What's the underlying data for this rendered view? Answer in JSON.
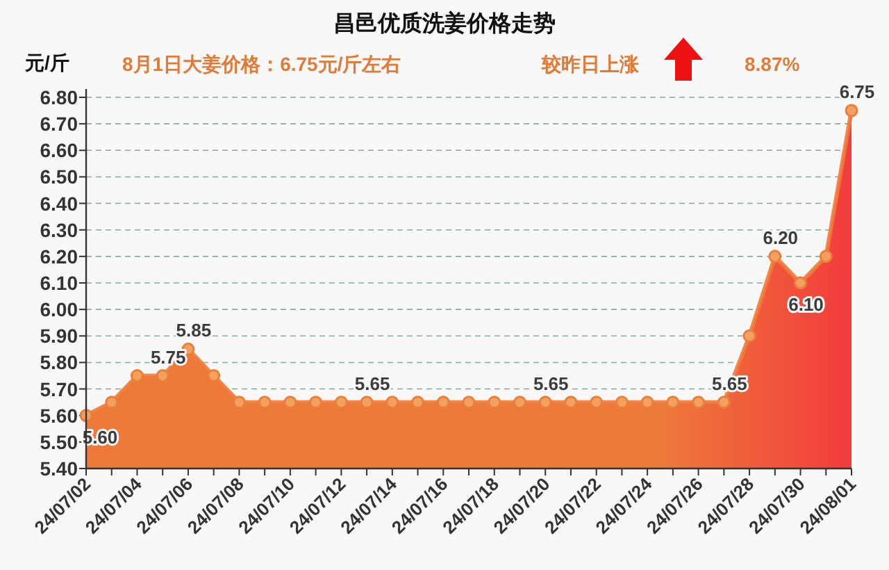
{
  "chart_data": {
    "type": "area",
    "title": "昌邑优质洗姜价格走势",
    "ylabel": "元/斤",
    "annotations": [
      "8月1日大姜价格：6.75元/斤左右",
      "较昨日上涨",
      "8.87%"
    ],
    "categories": [
      "24/07/02",
      null,
      "24/07/04",
      null,
      "24/07/06",
      null,
      "24/07/08",
      null,
      "24/07/10",
      null,
      "24/07/12",
      null,
      "24/07/14",
      null,
      "24/07/16",
      null,
      "24/07/18",
      null,
      "24/07/20",
      null,
      "24/07/22",
      null,
      "24/07/24",
      null,
      "24/07/26",
      null,
      "24/07/28",
      null,
      "24/07/30",
      null,
      "24/08/01"
    ],
    "series": [
      {
        "color": "#ee7a3a",
        "values": [
          5.6,
          5.65,
          5.75,
          5.75,
          5.85,
          5.75,
          5.65,
          5.65,
          5.65,
          5.65,
          5.65,
          5.65,
          5.65,
          5.65,
          5.65,
          5.65,
          5.65,
          5.65,
          5.65,
          5.65,
          5.65,
          5.65,
          5.65,
          5.65,
          5.65,
          5.65,
          5.9,
          6.2,
          6.1,
          6.2,
          6.75
        ],
        "value_labels": [
          "5.60",
          null,
          null,
          "5.75",
          "5.85",
          null,
          null,
          null,
          null,
          null,
          null,
          "5.65",
          null,
          null,
          null,
          null,
          null,
          null,
          "5.65",
          null,
          null,
          null,
          null,
          null,
          null,
          "5.65",
          null,
          "6.20",
          "6.10",
          null,
          "6.75"
        ]
      }
    ],
    "ylim": [
      5.4,
      6.8
    ],
    "yticks": [
      {
        "value": 5.4,
        "label": "5.40"
      },
      {
        "value": 5.5,
        "label": "5.50"
      },
      {
        "value": 5.6,
        "label": "5.60"
      },
      {
        "value": 5.7,
        "label": "5.70"
      },
      {
        "value": 5.8,
        "label": "5.80"
      },
      {
        "value": 5.9,
        "label": "5.90"
      },
      {
        "value": 6.0,
        "label": "6.00"
      },
      {
        "value": 6.1,
        "label": "6.10"
      },
      {
        "value": 6.2,
        "label": "6.20"
      },
      {
        "value": 6.3,
        "label": "6.30"
      },
      {
        "value": 6.4,
        "label": "6.40"
      },
      {
        "value": 6.5,
        "label": "6.50"
      },
      {
        "value": 6.6,
        "label": "6.60"
      },
      {
        "value": 6.7,
        "label": "6.70"
      },
      {
        "value": 6.8,
        "label": "6.80"
      }
    ],
    "grid": "y",
    "marker": "circle"
  }
}
